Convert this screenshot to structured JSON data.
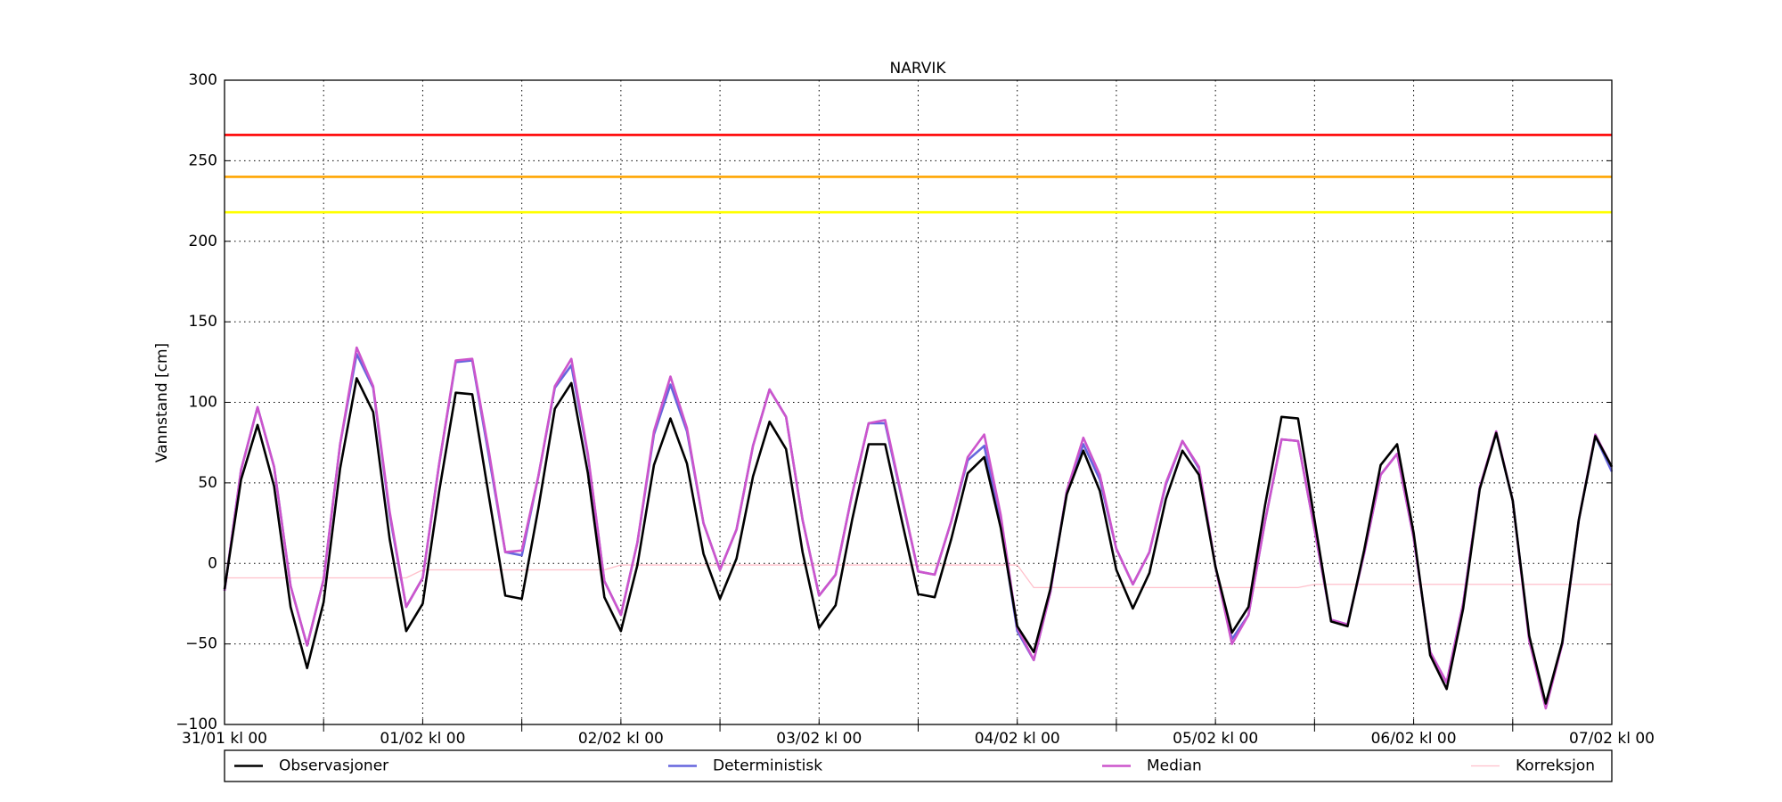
{
  "chart_data": {
    "type": "line",
    "title": "NARVIK",
    "y_label": "Vannstand [cm]",
    "xlim": [
      0,
      168
    ],
    "xticks": [
      {
        "value": 0,
        "label": "31/01 kl 00"
      },
      {
        "value": 24,
        "label": "01/02 kl 00"
      },
      {
        "value": 48,
        "label": "02/02 kl 00"
      },
      {
        "value": 72,
        "label": "03/02 kl 00"
      },
      {
        "value": 96,
        "label": "04/02 kl 00"
      },
      {
        "value": 120,
        "label": "05/02 kl 00"
      },
      {
        "value": 144,
        "label": "06/02 kl 00"
      },
      {
        "value": 168,
        "label": "07/02 kl 00"
      }
    ],
    "minor_xticks": [
      12,
      36,
      60,
      84,
      108,
      132,
      156
    ],
    "ylim": [
      -100,
      300
    ],
    "yticks": [
      {
        "value": -100,
        "label": "−100"
      },
      {
        "value": -50,
        "label": "−50"
      },
      0,
      50,
      100,
      150,
      200,
      250,
      300
    ],
    "grid": true,
    "legend": "bottom",
    "thresholds": [
      {
        "value": 266,
        "color": "#ff0000"
      },
      {
        "value": 240,
        "color": "#ffa500"
      },
      {
        "value": 218,
        "color": "#ffff00"
      }
    ],
    "x": [
      0,
      2,
      4,
      6,
      8,
      10,
      12,
      14,
      16,
      18,
      20,
      22,
      24,
      26,
      28,
      30,
      32,
      34,
      36,
      38,
      40,
      42,
      44,
      46,
      48,
      50,
      52,
      54,
      56,
      58,
      60,
      62,
      64,
      66,
      68,
      70,
      72,
      74,
      76,
      78,
      80,
      82,
      84,
      86,
      88,
      90,
      92,
      94,
      96,
      98,
      100,
      102,
      104,
      106,
      108,
      110,
      112,
      114,
      116,
      118,
      120,
      122,
      124,
      126,
      128,
      130,
      132,
      134,
      136,
      138,
      140,
      142,
      144,
      146,
      148,
      150,
      152,
      154,
      156,
      158,
      160,
      162,
      164,
      166,
      168
    ],
    "series": [
      {
        "name": "Observasjoner",
        "color": "#000000",
        "width": 2.6,
        "values": [
          -16,
          52,
          86,
          48,
          -27,
          -65,
          -24,
          59,
          115,
          94,
          15,
          -42,
          -25,
          45,
          106,
          105,
          42,
          -20,
          -22,
          34,
          96,
          112,
          56,
          -21,
          -42,
          -1,
          61,
          90,
          62,
          6,
          -22,
          3,
          54,
          88,
          71,
          7,
          -40,
          -26,
          27,
          74,
          74,
          27,
          -19,
          -21,
          15,
          56,
          66,
          22,
          -39,
          -55,
          -16,
          43,
          70,
          45,
          -4,
          -28,
          -6,
          40,
          70,
          55,
          -2,
          -43,
          -27,
          36,
          91,
          90,
          27,
          -36,
          -39,
          8,
          61,
          74,
          19,
          -57,
          -78,
          -28,
          46,
          81,
          39,
          -45,
          -87,
          -49,
          27,
          79,
          60
        ]
      },
      {
        "name": "Median",
        "color": "#cc55cc",
        "width": 2.6,
        "values": [
          -17,
          58,
          97,
          60,
          -14,
          -51,
          -10,
          74,
          134,
          110,
          32,
          -27,
          -9,
          62,
          126,
          127,
          70,
          7,
          8,
          54,
          110,
          127,
          68,
          -11,
          -32,
          13,
          82,
          116,
          84,
          25,
          -4,
          21,
          73,
          108,
          91,
          27,
          -20,
          -7,
          43,
          87,
          89,
          42,
          -5,
          -7,
          26,
          66,
          80,
          30,
          -40,
          -60,
          -18,
          45,
          78,
          55,
          9,
          -13,
          7,
          50,
          76,
          60,
          -2,
          -50,
          -32,
          26,
          77,
          76,
          21,
          -35,
          -38,
          6,
          55,
          68,
          16,
          -55,
          -74,
          -25,
          47,
          82,
          39,
          -48,
          -90,
          -50,
          27,
          80,
          60
        ]
      },
      {
        "name": "Deterministisk",
        "color": "#6666dd",
        "width": 2.6,
        "values": [
          -17,
          58,
          97,
          60,
          -14,
          -51,
          -10,
          74,
          130,
          109,
          30,
          -27,
          -9,
          62,
          125,
          126,
          67,
          7,
          5,
          54,
          109,
          123,
          67,
          -11,
          -32,
          13,
          80,
          111,
          82,
          25,
          -4,
          21,
          73,
          108,
          91,
          27,
          -20,
          -7,
          43,
          87,
          87,
          41,
          -5,
          -7,
          26,
          64,
          73,
          24,
          -42,
          -60,
          -18,
          45,
          74,
          52,
          9,
          -13,
          7,
          49,
          76,
          59,
          -2,
          -47,
          -32,
          26,
          77,
          76,
          21,
          -35,
          -38,
          6,
          55,
          68,
          16,
          -55,
          -74,
          -25,
          47,
          81,
          39,
          -46,
          -88,
          -50,
          27,
          79,
          57
        ]
      },
      {
        "name": "Korreksjon",
        "color": "#ffc0cb",
        "width": 1.3,
        "values": [
          -9,
          -9,
          -9,
          -9,
          -9,
          -9,
          -9,
          -9,
          -9,
          -9,
          -9,
          -9,
          -4,
          -4,
          -4,
          -4,
          -4,
          -4,
          -4,
          -4,
          -4,
          -4,
          -4,
          -4,
          -1,
          -1,
          -1,
          -1,
          -1,
          -1,
          -1,
          -1,
          -1,
          -1,
          -1,
          -1,
          -1,
          -1,
          -1,
          -1,
          -1,
          -1,
          -1,
          -1,
          -1,
          -1,
          -1,
          -1,
          -1,
          -15,
          -15,
          -15,
          -15,
          -15,
          -15,
          -15,
          -15,
          -15,
          -15,
          -15,
          -15,
          -15,
          -15,
          -15,
          -15,
          -15,
          -13,
          -13,
          -13,
          -13,
          -13,
          -13,
          -13,
          -13,
          -13,
          -13,
          -13,
          -13,
          -13,
          -13,
          -13,
          -13,
          -13,
          -13,
          -13
        ]
      }
    ],
    "legend_order": [
      0,
      2,
      1,
      3
    ]
  }
}
